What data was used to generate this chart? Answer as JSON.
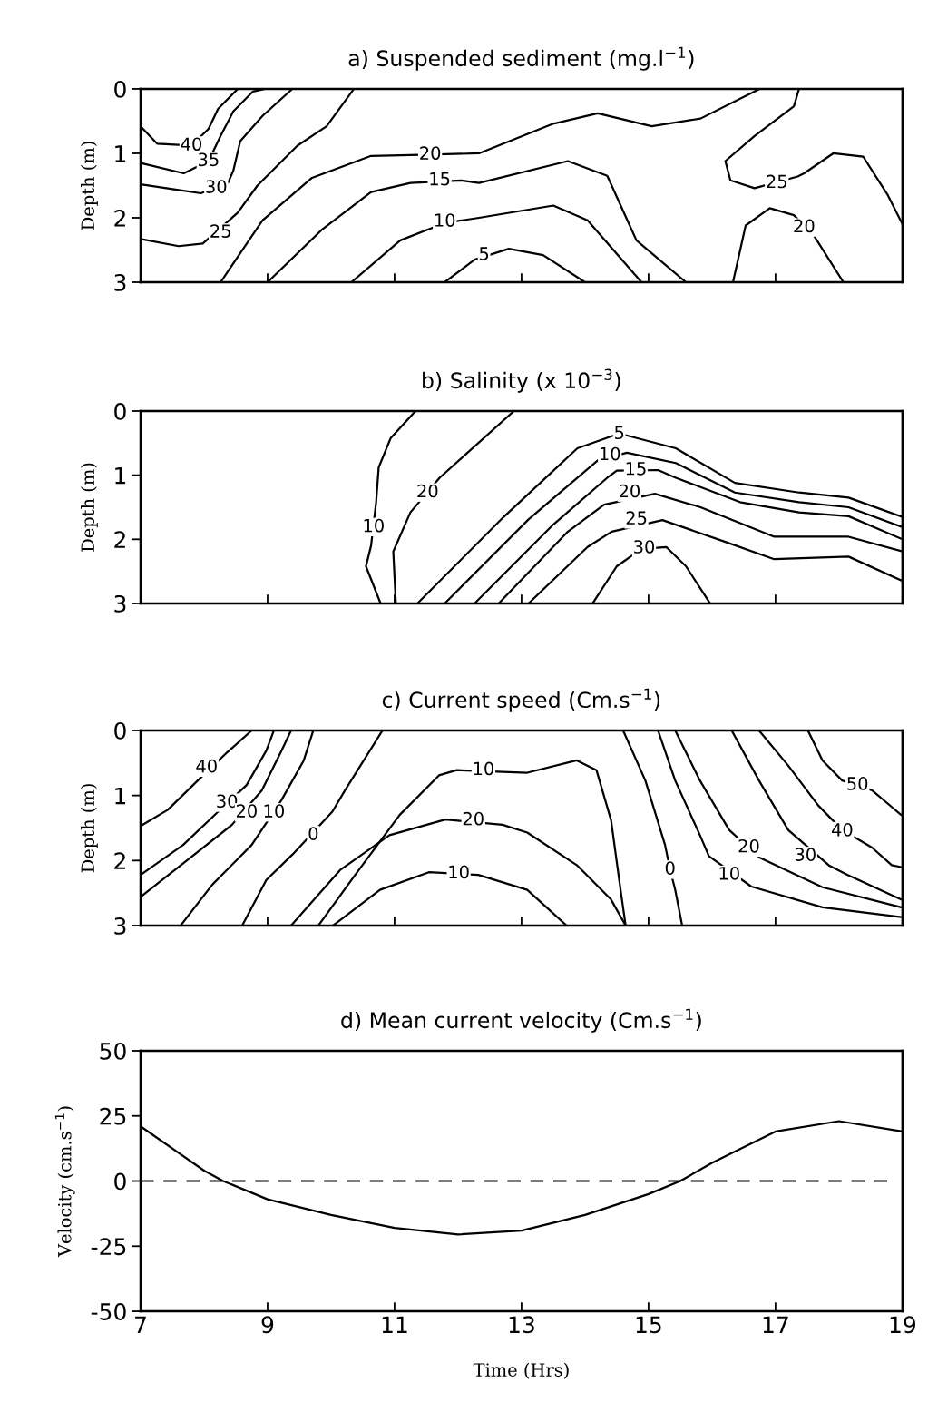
{
  "chart_data": [
    {
      "type": "line",
      "title": "a) Suspended sediment (mg.l$^{−1}$)",
      "ylabel": "Depth (m)",
      "xlim": [
        7,
        19
      ],
      "xticks": [
        7,
        9,
        11,
        13,
        15,
        17,
        19
      ],
      "ylim": [
        3,
        0
      ],
      "yticks": [
        0,
        1,
        2,
        3
      ],
      "tick_labels": "y",
      "grid": false,
      "series": [
        {
          "color": "#000000",
          "x": [
            7.0,
            7.26,
            7.8,
            8.07,
            8.22,
            8.53
          ],
          "values": [
            0.58,
            0.85,
            0.88,
            0.62,
            0.31,
            0.0
          ]
        },
        {
          "color": "#000000",
          "x": [
            7.0,
            7.68,
            8.07,
            8.26,
            8.46,
            8.77,
            8.96
          ],
          "values": [
            1.15,
            1.31,
            1.12,
            0.73,
            0.35,
            0.04,
            0.0
          ]
        },
        {
          "color": "#000000",
          "x": [
            7.0,
            7.6,
            7.95,
            8.38,
            8.46,
            8.57,
            8.92,
            9.39
          ],
          "values": [
            1.48,
            1.57,
            1.62,
            1.45,
            1.27,
            0.81,
            0.42,
            0.0
          ]
        },
        {
          "color": "#000000",
          "x": [
            7.0,
            7.6,
            7.98,
            8.53,
            8.84,
            9.47,
            9.93,
            10.36
          ],
          "values": [
            2.33,
            2.44,
            2.4,
            1.92,
            1.5,
            0.88,
            0.58,
            0.0
          ]
        },
        {
          "color": "#000000",
          "x": [
            8.26,
            8.92,
            9.7,
            10.63,
            11.56,
            12.33,
            13.5,
            14.2,
            15.05,
            15.82,
            16.75
          ],
          "values": [
            3.0,
            2.04,
            1.38,
            1.04,
            1.02,
            1.0,
            0.54,
            0.38,
            0.58,
            0.46,
            0.0
          ]
        },
        {
          "color": "#000000",
          "x": [
            9.0,
            9.85,
            10.63,
            11.25,
            12.05,
            12.33,
            13.73,
            14.35,
            14.81,
            15.59
          ],
          "values": [
            3.0,
            2.19,
            1.6,
            1.46,
            1.42,
            1.46,
            1.12,
            1.35,
            2.35,
            3.0
          ]
        },
        {
          "color": "#000000",
          "x": [
            10.32,
            11.09,
            11.79,
            12.33,
            13.5,
            14.04,
            14.89
          ],
          "values": [
            3.0,
            2.35,
            2.08,
            2.0,
            1.81,
            2.04,
            3.0
          ]
        },
        {
          "color": "#000000",
          "x": [
            11.79,
            12.26,
            12.8,
            13.34,
            14.0
          ],
          "values": [
            3.0,
            2.65,
            2.48,
            2.58,
            3.0
          ]
        },
        {
          "color": "#000000",
          "x": [
            17.37,
            17.29,
            16.67,
            16.21,
            16.29,
            16.67,
            17.35,
            17.45,
            17.91,
            18.38,
            18.77,
            19.0
          ],
          "values": [
            0.0,
            0.27,
            0.73,
            1.12,
            1.42,
            1.54,
            1.36,
            1.31,
            1.0,
            1.05,
            1.65,
            2.1
          ]
        },
        {
          "color": "#000000",
          "x": [
            16.33,
            16.53,
            16.91,
            17.29,
            17.6,
            18.07
          ],
          "values": [
            3.0,
            2.12,
            1.85,
            1.96,
            2.27,
            3.0
          ]
        }
      ],
      "annotations": [
        {
          "text": "40",
          "x": 7.8,
          "y": 0.88
        },
        {
          "text": "35",
          "x": 8.07,
          "y": 1.12
        },
        {
          "text": "30",
          "x": 8.19,
          "y": 1.54
        },
        {
          "text": "25",
          "x": 8.26,
          "y": 2.23
        },
        {
          "text": "20",
          "x": 11.56,
          "y": 1.02
        },
        {
          "text": "15",
          "x": 11.71,
          "y": 1.42
        },
        {
          "text": "10",
          "x": 11.79,
          "y": 2.06
        },
        {
          "text": "5",
          "x": 12.41,
          "y": 2.58
        },
        {
          "text": "25",
          "x": 17.02,
          "y": 1.46
        },
        {
          "text": "20",
          "x": 17.45,
          "y": 2.15
        }
      ]
    },
    {
      "type": "line",
      "title": "b) Salinity (x 10$^{−3}$)",
      "ylabel": "Depth (m)",
      "xlim": [
        7,
        19
      ],
      "xticks": [
        7,
        9,
        11,
        13,
        15,
        17,
        19
      ],
      "ylim": [
        3,
        0
      ],
      "yticks": [
        0,
        1,
        2,
        3
      ],
      "tick_labels": "y",
      "grid": false,
      "series": [
        {
          "color": "#000000",
          "x": [
            11.33,
            10.94,
            10.75,
            10.71,
            10.63,
            10.55,
            10.78
          ],
          "values": [
            0.0,
            0.42,
            0.88,
            1.42,
            2.1,
            2.42,
            3.0
          ]
        },
        {
          "color": "#000000",
          "x": [
            12.88,
            11.71,
            11.25,
            10.98,
            11.02
          ],
          "values": [
            0.0,
            1.04,
            1.58,
            2.19,
            3.0
          ]
        },
        {
          "color": "#000000",
          "x": [
            11.36,
            12.72,
            13.88,
            14.54,
            15.43,
            16.36,
            17.37,
            18.15,
            19.0
          ],
          "values": [
            3.0,
            1.65,
            0.58,
            0.35,
            0.58,
            1.12,
            1.27,
            1.35,
            1.65
          ]
        },
        {
          "color": "#000000",
          "x": [
            11.79,
            13.11,
            14.2,
            14.66,
            15.43,
            16.36,
            17.37,
            18.15,
            19.0
          ],
          "values": [
            3.0,
            1.69,
            0.77,
            0.65,
            0.81,
            1.27,
            1.42,
            1.5,
            1.81
          ]
        },
        {
          "color": "#000000",
          "x": [
            12.26,
            13.5,
            14.35,
            14.5,
            15.15,
            15.43,
            16.44,
            17.37,
            18.15,
            19.0
          ],
          "values": [
            3.0,
            1.77,
            1.04,
            0.93,
            0.92,
            1.04,
            1.42,
            1.58,
            1.64,
            2.0
          ]
        },
        {
          "color": "#000000",
          "x": [
            12.64,
            13.73,
            14.3,
            15.1,
            15.82,
            16.98,
            18.15,
            19.0
          ],
          "values": [
            3.0,
            1.88,
            1.46,
            1.29,
            1.5,
            1.96,
            1.96,
            2.19
          ]
        },
        {
          "color": "#000000",
          "x": [
            13.11,
            14.04,
            14.42,
            15.22,
            16.21,
            16.98,
            18.15,
            19.0
          ],
          "values": [
            3.0,
            2.12,
            1.88,
            1.7,
            2.04,
            2.31,
            2.27,
            2.65
          ]
        },
        {
          "color": "#000000",
          "x": [
            14.12,
            14.5,
            14.89,
            15.28,
            15.59,
            15.97
          ],
          "values": [
            3.0,
            2.42,
            2.15,
            2.12,
            2.42,
            3.0
          ]
        }
      ],
      "annotations": [
        {
          "text": "10",
          "x": 10.67,
          "y": 1.81
        },
        {
          "text": "20",
          "x": 11.52,
          "y": 1.27
        },
        {
          "text": "5",
          "x": 14.54,
          "y": 0.36
        },
        {
          "text": "10",
          "x": 14.39,
          "y": 0.69
        },
        {
          "text": "15",
          "x": 14.8,
          "y": 0.92
        },
        {
          "text": "20",
          "x": 14.7,
          "y": 1.27
        },
        {
          "text": "25",
          "x": 14.81,
          "y": 1.69
        },
        {
          "text": "30",
          "x": 14.93,
          "y": 2.14
        }
      ]
    },
    {
      "type": "line",
      "title": "c) Current speed (Cm.s$^{−1}$)",
      "ylabel": "Depth (m)",
      "xlim": [
        7,
        19
      ],
      "xticks": [
        7,
        9,
        11,
        13,
        15,
        17,
        19
      ],
      "ylim": [
        3,
        0
      ],
      "yticks": [
        0,
        1,
        2,
        3
      ],
      "tick_labels": "y",
      "grid": false,
      "series": [
        {
          "color": "#000000",
          "x": [
            7.0,
            7.43,
            7.9,
            8.36,
            8.75
          ],
          "values": [
            1.47,
            1.22,
            0.77,
            0.34,
            0.0
          ]
        },
        {
          "color": "#000000",
          "x": [
            7.0,
            7.67,
            8.21,
            8.67,
            8.98,
            9.1
          ],
          "values": [
            2.22,
            1.76,
            1.26,
            0.84,
            0.31,
            0.0
          ]
        },
        {
          "color": "#000000",
          "x": [
            7.0,
            7.74,
            8.44,
            8.91,
            9.22,
            9.37
          ],
          "values": [
            2.56,
            1.99,
            1.45,
            0.92,
            0.31,
            0.0
          ]
        },
        {
          "color": "#000000",
          "x": [
            7.63,
            8.13,
            8.75,
            9.22,
            9.57,
            9.72
          ],
          "values": [
            3.0,
            2.37,
            1.76,
            1.07,
            0.46,
            0.0
          ]
        },
        {
          "color": "#000000",
          "x": [
            8.6,
            8.98,
            9.4,
            10.02,
            10.22,
            10.81
          ],
          "values": [
            3.0,
            2.3,
            1.9,
            1.25,
            0.92,
            0.0
          ]
        },
        {
          "color": "#000000",
          "x": [
            9.37,
            10.15,
            10.92,
            11.8,
            12.7,
            13.09,
            13.87,
            14.41,
            14.64
          ],
          "values": [
            3.0,
            2.14,
            1.61,
            1.37,
            1.45,
            1.57,
            2.07,
            2.6,
            3.0
          ]
        },
        {
          "color": "#000000",
          "x": [
            9.8,
            10.38,
            11.08,
            11.7,
            11.98,
            13.09,
            13.87,
            14.18,
            14.41,
            14.57,
            14.64
          ],
          "values": [
            3.0,
            2.22,
            1.3,
            0.69,
            0.61,
            0.65,
            0.46,
            0.61,
            1.38,
            2.52,
            3.0
          ]
        },
        {
          "color": "#000000",
          "x": [
            10.03,
            10.77,
            11.54,
            12.32,
            13.09,
            13.71
          ],
          "values": [
            3.0,
            2.45,
            2.18,
            2.22,
            2.45,
            3.0
          ]
        },
        {
          "color": "#000000",
          "x": [
            14.6,
            14.95,
            15.26,
            15.34,
            15.42,
            15.53
          ],
          "values": [
            0.0,
            0.77,
            1.76,
            2.14,
            2.45,
            3.0
          ]
        },
        {
          "color": "#000000",
          "x": [
            15.15,
            15.42,
            15.81,
            15.95,
            16.62,
            17.74,
            18.98
          ],
          "values": [
            0.0,
            0.77,
            1.61,
            1.93,
            2.4,
            2.72,
            2.87
          ]
        },
        {
          "color": "#000000",
          "x": [
            15.42,
            15.81,
            16.27,
            16.74,
            17.74,
            18.98
          ],
          "values": [
            0.0,
            0.77,
            1.53,
            1.95,
            2.41,
            2.72
          ]
        },
        {
          "color": "#000000",
          "x": [
            16.31,
            16.74,
            17.2,
            17.85,
            18.13,
            18.98
          ],
          "values": [
            0.0,
            0.77,
            1.53,
            2.08,
            2.22,
            2.6
          ]
        },
        {
          "color": "#000000",
          "x": [
            16.74,
            17.2,
            17.67,
            18.05,
            18.52,
            18.83,
            18.98
          ],
          "values": [
            0.0,
            0.54,
            1.15,
            1.53,
            1.8,
            2.07,
            2.1
          ]
        },
        {
          "color": "#000000",
          "x": [
            17.51,
            17.74,
            18.05,
            18.52,
            18.75,
            18.98
          ],
          "values": [
            0.0,
            0.46,
            0.77,
            0.92,
            1.11,
            1.3
          ]
        }
      ],
      "annotations": [
        {
          "text": "40",
          "x": 8.04,
          "y": 0.57
        },
        {
          "text": "30",
          "x": 8.36,
          "y": 1.11
        },
        {
          "text": "20",
          "x": 8.67,
          "y": 1.26
        },
        {
          "text": "10",
          "x": 9.1,
          "y": 1.26
        },
        {
          "text": "0",
          "x": 9.72,
          "y": 1.61
        },
        {
          "text": "20",
          "x": 12.24,
          "y": 1.38
        },
        {
          "text": "10",
          "x": 12.4,
          "y": 0.61
        },
        {
          "text": "10",
          "x": 12.01,
          "y": 2.2
        },
        {
          "text": "0",
          "x": 15.34,
          "y": 2.14
        },
        {
          "text": "10",
          "x": 16.27,
          "y": 2.22
        },
        {
          "text": "20",
          "x": 16.58,
          "y": 1.8
        },
        {
          "text": "30",
          "x": 17.47,
          "y": 1.93
        },
        {
          "text": "40",
          "x": 18.05,
          "y": 1.55
        },
        {
          "text": "50",
          "x": 18.29,
          "y": 0.84
        }
      ]
    },
    {
      "type": "line",
      "title": "d) Mean current velocity (Cm.s$^{−1}$)",
      "xlabel": "Time (Hrs)",
      "ylabel": "Velocity (cm.s$^{−1}$)",
      "xlim": [
        7,
        19
      ],
      "xticks": [
        7,
        9,
        11,
        13,
        15,
        17,
        19
      ],
      "ylim": [
        -50,
        50
      ],
      "yticks": [
        -50,
        -25,
        0,
        25,
        50
      ],
      "grid": false,
      "series": [
        {
          "color": "#000000",
          "x": [
            7,
            8,
            8.3,
            9,
            10,
            11,
            12,
            13,
            14,
            15,
            15.5,
            16,
            17,
            18,
            19
          ],
          "values": [
            21,
            4,
            0,
            -7,
            -13,
            -18,
            -20.5,
            -19,
            -13,
            -5,
            0,
            7,
            19,
            23,
            19
          ]
        }
      ],
      "ref_lines": [
        {
          "axis": "y",
          "value": 0,
          "color": "#000000",
          "line_style": "dashed"
        }
      ]
    }
  ]
}
